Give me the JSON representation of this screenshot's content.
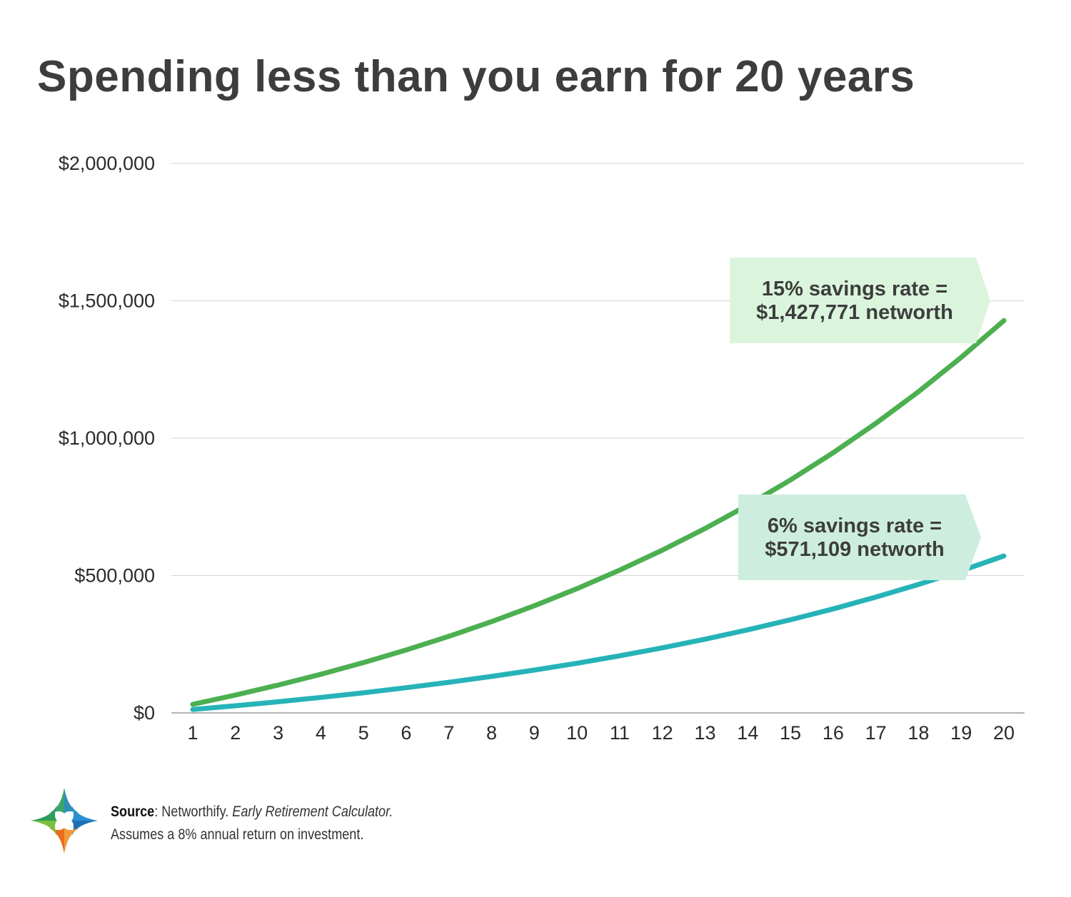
{
  "chart_data": {
    "type": "line",
    "title": "Spending less than you earn for 20 years",
    "x": [
      1,
      2,
      3,
      4,
      5,
      6,
      7,
      8,
      9,
      10,
      11,
      12,
      13,
      14,
      15,
      16,
      17,
      18,
      19,
      20
    ],
    "ylim": [
      0,
      2000000
    ],
    "yticks": [
      0,
      500000,
      1000000,
      1500000,
      2000000
    ],
    "ytick_labels": [
      "$0",
      "$500,000",
      "$1,000,000",
      "$1,500,000",
      "$2,000,000"
    ],
    "grid": true,
    "series": [
      {
        "name": "15% savings rate",
        "color": "#4caf50",
        "values": [
          31200,
          64900,
          101300,
          140600,
          183100,
          229000,
          278600,
          332100,
          389900,
          452300,
          519700,
          592500,
          671100,
          756000,
          847700,
          946700,
          1053700,
          1169200,
          1293900,
          1427771
        ]
      },
      {
        "name": "6% savings rate",
        "color": "#26b3b8",
        "values": [
          12480,
          25960,
          40520,
          56240,
          73220,
          91560,
          111370,
          132760,
          155870,
          180820,
          207770,
          236880,
          268320,
          302270,
          338940,
          378530,
          421290,
          467480,
          517360,
          571109
        ]
      }
    ],
    "annotations": [
      {
        "line1": "15% savings rate =",
        "line2": "$1,427,771 networth",
        "color": "#dbf5dd"
      },
      {
        "line1": "6% savings rate =",
        "line2": "$571,109 networth",
        "color": "#cdeede"
      }
    ]
  },
  "footer": {
    "source_label": "Source",
    "source_name": ": Networthify. ",
    "source_title": "Early Retirement Calculator.",
    "note": "Assumes a 8% annual return on investment."
  },
  "logo": {
    "icon": "four-point-star-logo",
    "colors": [
      "#2e9d5a",
      "#2a8fd0",
      "#f07a22",
      "#4cb848"
    ]
  }
}
